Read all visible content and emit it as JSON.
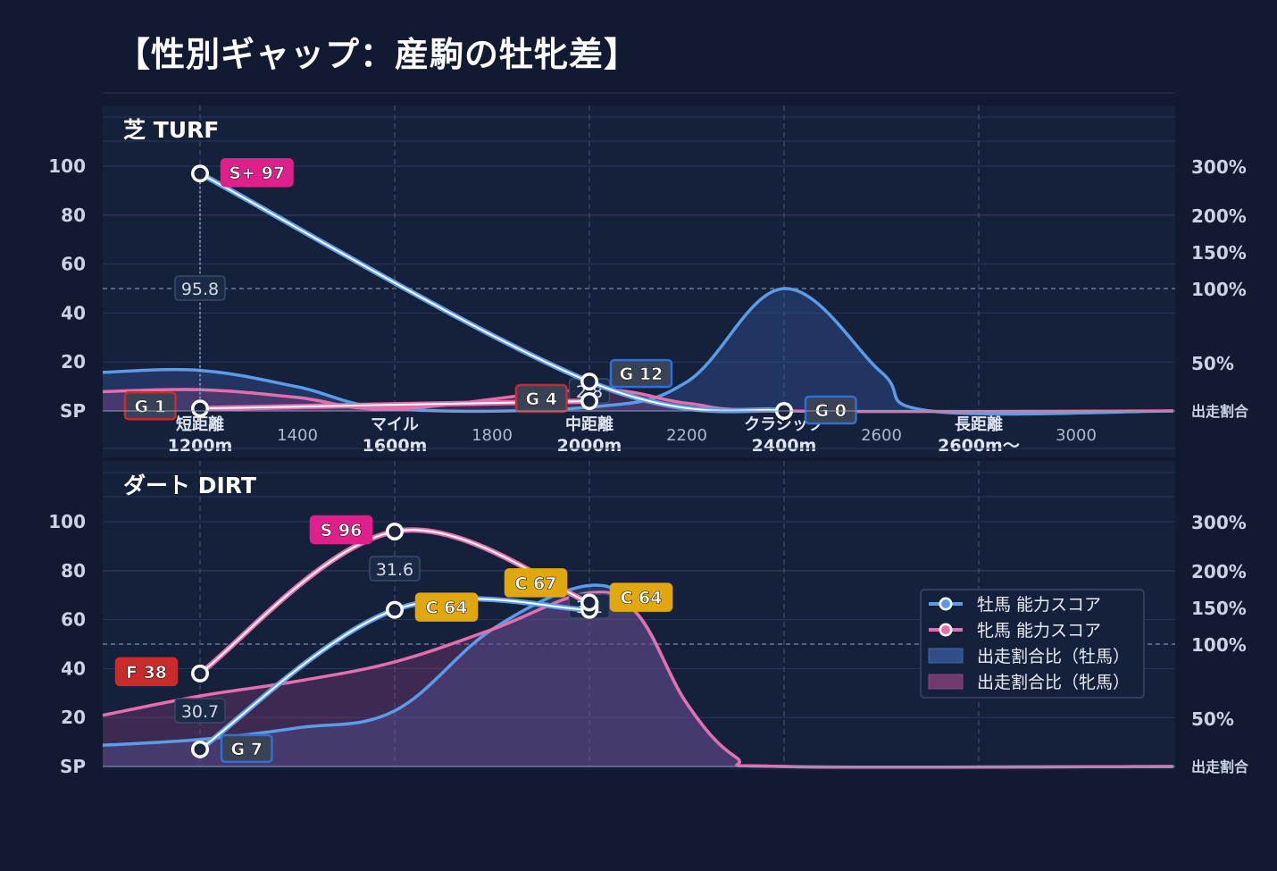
{
  "title": "【性別ギャップ：産駒の牡牝差】",
  "colors": {
    "background": "#111a30",
    "panel": "#15203b",
    "male": "#5b9be8",
    "female": "#e46fae",
    "grade_S_plus": "#e0208a",
    "grade_S": "#e0208a",
    "grade_C": "#e0a80e",
    "grade_F": "#c92a2a",
    "grade_G_male": "#2f6fd8",
    "grade_G_female": "#c92a2a"
  },
  "chart_data": [
    {
      "type": "line",
      "panel": "芝 TURF",
      "y_ticks_left": [
        "SP",
        "20",
        "40",
        "60",
        "80",
        "100"
      ],
      "y_ticks_right": [
        "出走割合",
        "50%",
        "100%",
        "150%",
        "200%",
        "300%"
      ],
      "x_ticks": [
        {
          "x": 1200,
          "label": "短距離",
          "sub": "1200m"
        },
        {
          "x": 1400,
          "label": "",
          "sub": "1400"
        },
        {
          "x": 1600,
          "label": "マイル",
          "sub": "1600m"
        },
        {
          "x": 1800,
          "label": "",
          "sub": "1800"
        },
        {
          "x": 2000,
          "label": "中距離",
          "sub": "2000m"
        },
        {
          "x": 2200,
          "label": "",
          "sub": "2200"
        },
        {
          "x": 2400,
          "label": "クラシック",
          "sub": "2400m"
        },
        {
          "x": 2600,
          "label": "",
          "sub": "2600"
        },
        {
          "x": 2800,
          "label": "長距離",
          "sub": "2600m〜"
        },
        {
          "x": 3000,
          "label": "",
          "sub": "3000"
        }
      ],
      "series": [
        {
          "name": "牡馬 能力スコア",
          "x": [
            1200,
            2000,
            2400
          ],
          "values": [
            97,
            12,
            0
          ],
          "grades": [
            "S+ 97",
            "G 12",
            "G 0"
          ]
        },
        {
          "name": "牝馬 能力スコア",
          "x": [
            1200,
            2000
          ],
          "values": [
            1,
            4
          ],
          "grades": [
            "G 1",
            "G 4"
          ]
        }
      ],
      "share_male_pct": [
        [
          1000,
          40
        ],
        [
          1200,
          42
        ],
        [
          1400,
          25
        ],
        [
          1600,
          2
        ],
        [
          2000,
          4
        ],
        [
          2200,
          30
        ],
        [
          2400,
          100
        ],
        [
          2600,
          40
        ],
        [
          2700,
          0
        ],
        [
          3200,
          0
        ]
      ],
      "share_female_pct": [
        [
          1000,
          20
        ],
        [
          1200,
          22
        ],
        [
          1400,
          14
        ],
        [
          1600,
          2
        ],
        [
          2000,
          22
        ],
        [
          2200,
          8
        ],
        [
          2400,
          0
        ],
        [
          3200,
          0
        ]
      ],
      "point_labels": [
        {
          "x": 1200,
          "text": "95.8"
        },
        {
          "x": 2000,
          "text": "2.8"
        }
      ]
    },
    {
      "type": "line",
      "panel": "ダート DIRT",
      "y_ticks_left": [
        "SP",
        "20",
        "40",
        "60",
        "80",
        "100"
      ],
      "y_ticks_right": [
        "出走割合",
        "50%",
        "100%",
        "150%",
        "200%",
        "300%"
      ],
      "series": [
        {
          "name": "牡馬 能力スコア",
          "x": [
            1200,
            1600,
            2000
          ],
          "values": [
            7,
            64,
            64
          ],
          "grades": [
            "G 7",
            "C 64",
            "C 64"
          ]
        },
        {
          "name": "牝馬 能力スコア",
          "x": [
            1200,
            1600,
            2000
          ],
          "values": [
            38,
            96,
            67
          ],
          "grades": [
            "F 38",
            "S 96",
            "C 67"
          ]
        }
      ],
      "share_male_pct": [
        [
          1000,
          22
        ],
        [
          1200,
          28
        ],
        [
          1400,
          40
        ],
        [
          1600,
          55
        ],
        [
          1800,
          120
        ],
        [
          2000,
          180
        ],
        [
          2100,
          140
        ],
        [
          2200,
          60
        ],
        [
          2300,
          10
        ],
        [
          2400,
          0
        ],
        [
          3200,
          0
        ]
      ],
      "share_female_pct": [
        [
          1000,
          52
        ],
        [
          1200,
          65
        ],
        [
          1400,
          75
        ],
        [
          1600,
          88
        ],
        [
          1800,
          120
        ],
        [
          2000,
          170
        ],
        [
          2100,
          140
        ],
        [
          2200,
          60
        ],
        [
          2300,
          10
        ],
        [
          2400,
          0
        ],
        [
          3200,
          0
        ]
      ],
      "point_labels": [
        {
          "x": 1200,
          "text": "30.7"
        },
        {
          "x": 1600,
          "text": "31.6"
        },
        {
          "x": 2000,
          "text": "3.1"
        }
      ]
    }
  ],
  "legend": {
    "items": [
      "牡馬 能力スコア",
      "牝馬 能力スコア",
      "出走割合比（牡馬）",
      "出走割合比（牝馬）"
    ]
  }
}
